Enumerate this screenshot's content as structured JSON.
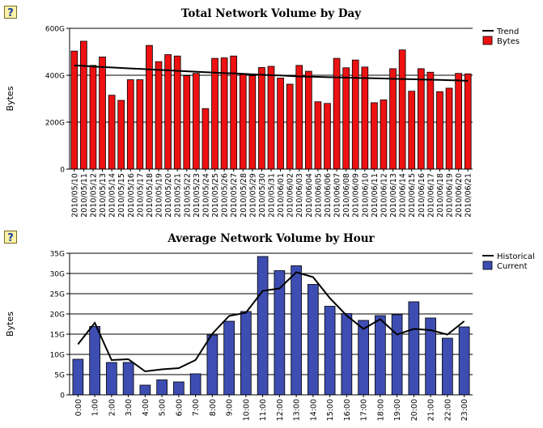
{
  "chart_data": [
    {
      "type": "bar",
      "title": "Total Network Volume by Day",
      "ylabel": "Bytes",
      "ylim": [
        0,
        600
      ],
      "yticks": [
        "0",
        "200G",
        "400G",
        "600G"
      ],
      "ytick_values": [
        0,
        200,
        400,
        600
      ],
      "grid": true,
      "legend_position": "right",
      "categories": [
        "2010/05/10",
        "2010/05/11",
        "2010/05/12",
        "2010/05/13",
        "2010/05/14",
        "2010/05/15",
        "2010/05/16",
        "2010/05/17",
        "2010/05/18",
        "2010/05/19",
        "2010/05/20",
        "2010/05/21",
        "2010/05/22",
        "2010/05/23",
        "2010/05/24",
        "2010/05/25",
        "2010/05/26",
        "2010/05/27",
        "2010/05/28",
        "2010/05/29",
        "2010/05/30",
        "2010/05/31",
        "2010/06/01",
        "2010/06/02",
        "2010/06/03",
        "2010/06/04",
        "2010/06/05",
        "2010/06/06",
        "2010/06/07",
        "2010/06/08",
        "2010/06/09",
        "2010/06/10",
        "2010/06/11",
        "2010/06/12",
        "2010/06/13",
        "2010/06/14",
        "2010/06/15",
        "2010/06/16",
        "2010/06/17",
        "2010/06/18",
        "2010/06/19",
        "2010/06/20",
        "2010/06/21"
      ],
      "series": [
        {
          "name": "Trend",
          "kind": "line",
          "color": "#000000",
          "values": [
            442,
            440,
            437,
            435,
            433,
            431,
            429,
            427,
            425,
            423,
            421,
            419,
            417,
            415,
            413,
            411,
            409,
            408,
            406,
            404,
            402,
            400,
            399,
            397,
            395,
            394,
            393,
            392,
            391,
            390,
            389,
            388,
            387,
            386,
            385,
            384,
            383,
            382,
            381,
            380,
            379,
            378,
            376
          ]
        },
        {
          "name": "Bytes",
          "kind": "bar",
          "color": "#ee1111",
          "values": [
            503,
            545,
            442,
            478,
            315,
            293,
            381,
            381,
            527,
            458,
            488,
            482,
            398,
            408,
            258,
            472,
            474,
            482,
            403,
            398,
            433,
            438,
            388,
            362,
            442,
            417,
            287,
            280,
            472,
            432,
            465,
            435,
            283,
            295,
            428,
            508,
            332,
            428,
            413,
            330,
            345,
            408,
            406
          ]
        }
      ]
    },
    {
      "type": "bar",
      "title": "Average Network Volume by Hour",
      "ylabel": "Bytes",
      "ylim": [
        0,
        35
      ],
      "yticks": [
        "0",
        "5G",
        "10G",
        "15G",
        "20G",
        "25G",
        "30G",
        "35G"
      ],
      "ytick_values": [
        0,
        5,
        10,
        15,
        20,
        25,
        30,
        35
      ],
      "grid": true,
      "legend_position": "right",
      "categories": [
        "0:00",
        "1:00",
        "2:00",
        "3:00",
        "4:00",
        "5:00",
        "6:00",
        "7:00",
        "8:00",
        "9:00",
        "10:00",
        "11:00",
        "12:00",
        "13:00",
        "14:00",
        "15:00",
        "16:00",
        "17:00",
        "18:00",
        "19:00",
        "20:00",
        "21:00",
        "22:00",
        "23:00"
      ],
      "series": [
        {
          "name": "Historical",
          "kind": "line",
          "color": "#000000",
          "values": [
            12.5,
            17.8,
            8.6,
            8.8,
            5.8,
            6.3,
            6.6,
            8.6,
            15.1,
            19.5,
            20.3,
            25.7,
            26.3,
            30.3,
            29.1,
            23.9,
            19.6,
            16.3,
            18.7,
            14.9,
            16.3,
            16.0,
            14.9,
            18.2
          ]
        },
        {
          "name": "Current",
          "kind": "bar",
          "color": "#3d4db2",
          "values": [
            8.8,
            16.9,
            8.0,
            8.0,
            2.4,
            3.7,
            3.2,
            5.2,
            14.8,
            18.2,
            20.6,
            34.2,
            30.7,
            31.9,
            27.3,
            21.9,
            20.1,
            18.4,
            19.6,
            19.8,
            23.0,
            19.0,
            14.0,
            16.8
          ]
        }
      ]
    }
  ]
}
